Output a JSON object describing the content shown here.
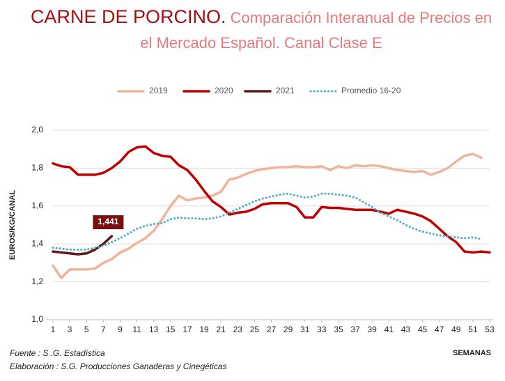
{
  "chart_data": {
    "type": "line",
    "title": "CARNE DE PORCINO.",
    "subtitle": "Comparación Interanual de Precios en el Mercado Español. Canal Clase E",
    "y_label": "EUROS/KG/CANAL",
    "x_label": "SEMANAS",
    "source": "Fuente :  S .G. Estadística",
    "credit": "Elaboración : S.G. Producciones Ganaderas y Cinegéticas",
    "x": [
      1,
      2,
      3,
      4,
      5,
      6,
      7,
      8,
      9,
      10,
      11,
      12,
      13,
      14,
      15,
      16,
      17,
      18,
      19,
      20,
      21,
      22,
      23,
      24,
      25,
      26,
      27,
      28,
      29,
      30,
      31,
      32,
      33,
      34,
      35,
      36,
      37,
      38,
      39,
      40,
      41,
      42,
      43,
      44,
      45,
      46,
      47,
      48,
      49,
      50,
      51,
      52,
      53
    ],
    "xlim": [
      1,
      53
    ],
    "xticks": [
      1,
      3,
      5,
      7,
      9,
      11,
      13,
      15,
      17,
      19,
      21,
      23,
      25,
      27,
      29,
      31,
      33,
      35,
      37,
      39,
      41,
      43,
      45,
      47,
      49,
      51,
      53
    ],
    "ylim": [
      1.0,
      2.0
    ],
    "yticks": [
      {
        "value": 1.0,
        "label": "1,0"
      },
      {
        "value": 1.2,
        "label": "1,2"
      },
      {
        "value": 1.4,
        "label": "1,4"
      },
      {
        "value": 1.6,
        "label": "1,6"
      },
      {
        "value": 1.8,
        "label": "1,8"
      },
      {
        "value": 2.0,
        "label": "2,0"
      }
    ],
    "grid": true,
    "legend": "top",
    "series": [
      {
        "name": "2019",
        "color": "#f0b49a",
        "style": "solid",
        "values": [
          1.285,
          1.22,
          1.265,
          1.265,
          1.265,
          1.27,
          1.3,
          1.32,
          1.355,
          1.375,
          1.405,
          1.43,
          1.47,
          1.53,
          1.6,
          1.655,
          1.63,
          1.64,
          1.645,
          1.655,
          1.675,
          1.74,
          1.75,
          1.77,
          1.785,
          1.795,
          1.8,
          1.805,
          1.805,
          1.81,
          1.805,
          1.805,
          1.81,
          1.79,
          1.81,
          1.8,
          1.815,
          1.81,
          1.815,
          1.81,
          1.8,
          1.79,
          1.785,
          1.78,
          1.785,
          1.765,
          1.78,
          1.8,
          1.835,
          1.865,
          1.875,
          1.855,
          null
        ]
      },
      {
        "name": "2020",
        "color": "#c00000",
        "style": "solid",
        "values": [
          1.825,
          1.81,
          1.805,
          1.765,
          1.765,
          1.765,
          1.775,
          1.8,
          1.835,
          1.885,
          1.91,
          1.915,
          1.88,
          1.865,
          1.86,
          1.815,
          1.79,
          1.74,
          1.68,
          1.625,
          1.595,
          1.555,
          1.565,
          1.57,
          1.585,
          1.61,
          1.615,
          1.615,
          1.615,
          1.595,
          1.54,
          1.54,
          1.595,
          1.59,
          1.59,
          1.585,
          1.58,
          1.58,
          1.58,
          1.57,
          1.56,
          1.58,
          1.57,
          1.56,
          1.545,
          1.52,
          1.48,
          1.44,
          1.41,
          1.36,
          1.355,
          1.36,
          1.355
        ]
      },
      {
        "name": "2021",
        "color": "#5c1a1a",
        "style": "solid",
        "values": [
          1.36,
          1.355,
          1.35,
          1.345,
          1.35,
          1.37,
          1.4,
          1.441,
          null,
          null,
          null,
          null,
          null,
          null,
          null,
          null,
          null,
          null,
          null,
          null,
          null,
          null,
          null,
          null,
          null,
          null,
          null,
          null,
          null,
          null,
          null,
          null,
          null,
          null,
          null,
          null,
          null,
          null,
          null,
          null,
          null,
          null,
          null,
          null,
          null,
          null,
          null,
          null,
          null,
          null,
          null,
          null,
          null
        ],
        "value_labels": [
          null,
          null,
          null,
          null,
          null,
          null,
          null,
          "1,441",
          null,
          null,
          null,
          null,
          null,
          null,
          null,
          null,
          null,
          null,
          null,
          null,
          null,
          null,
          null,
          null,
          null,
          null,
          null,
          null,
          null,
          null,
          null,
          null,
          null,
          null,
          null,
          null,
          null,
          null,
          null,
          null,
          null,
          null,
          null,
          null,
          null,
          null,
          null,
          null,
          null,
          null,
          null,
          null,
          null
        ]
      },
      {
        "name": "Promedio 16-20",
        "color": "#4bacc6",
        "style": "dotted",
        "values": [
          1.38,
          1.375,
          1.37,
          1.37,
          1.37,
          1.38,
          1.39,
          1.41,
          1.43,
          1.455,
          1.48,
          1.495,
          1.505,
          1.51,
          1.53,
          1.54,
          1.535,
          1.535,
          1.53,
          1.535,
          1.545,
          1.565,
          1.585,
          1.605,
          1.625,
          1.64,
          1.65,
          1.66,
          1.665,
          1.655,
          1.645,
          1.65,
          1.665,
          1.665,
          1.66,
          1.655,
          1.645,
          1.62,
          1.595,
          1.565,
          1.545,
          1.525,
          1.5,
          1.48,
          1.465,
          1.455,
          1.445,
          1.44,
          1.435,
          1.43,
          1.435,
          1.425,
          null
        ]
      }
    ]
  }
}
